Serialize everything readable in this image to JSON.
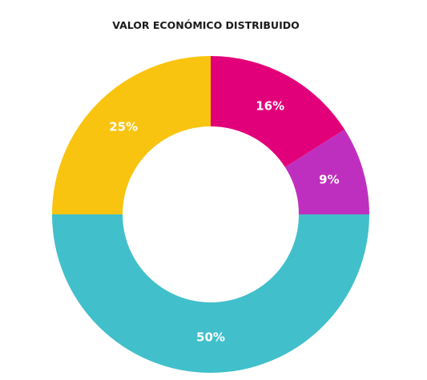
{
  "chart_data": {
    "type": "donut",
    "title": "VALOR ECONÓMICO DISTRIBUIDO",
    "values": [
      16,
      9,
      50,
      25
    ],
    "value_labels": [
      "16%",
      "9%",
      "50%",
      "25%"
    ],
    "colors": [
      "#e2007a",
      "#bf2fbf",
      "#41bfcb",
      "#f9c40f"
    ]
  }
}
